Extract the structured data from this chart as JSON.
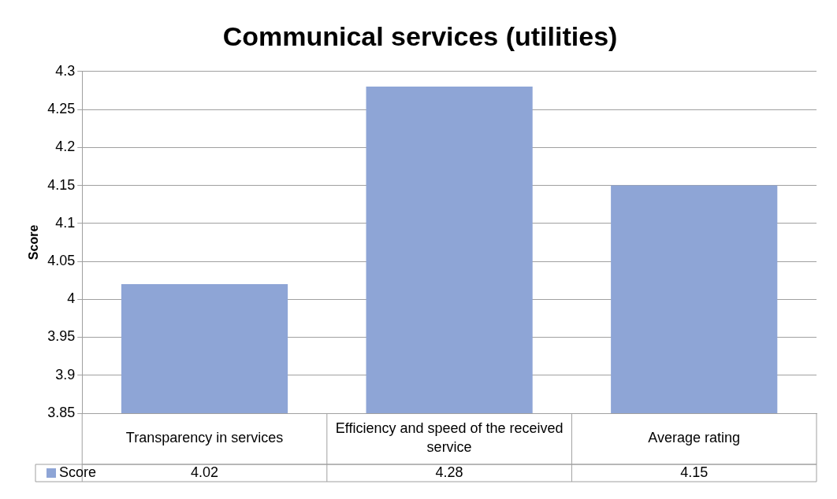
{
  "chart_data": {
    "type": "bar",
    "title": "Communical services (utilities)",
    "ylabel": "Score",
    "categories": [
      "Transparency in services",
      "Efficiency and speed of the received service",
      "Average rating"
    ],
    "series": [
      {
        "name": "Score",
        "color": "#8ea5d6",
        "values": [
          4.02,
          4.28,
          4.15
        ]
      }
    ],
    "ylim": [
      3.85,
      4.3
    ],
    "yticks": [
      3.85,
      3.9,
      3.95,
      4,
      4.05,
      4.1,
      4.15,
      4.2,
      4.25,
      4.3
    ],
    "grid": "y",
    "legend": "bottom",
    "data_labels": true
  }
}
